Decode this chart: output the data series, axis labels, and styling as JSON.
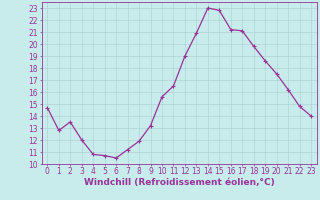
{
  "x": [
    0,
    1,
    2,
    3,
    4,
    5,
    6,
    7,
    8,
    9,
    10,
    11,
    12,
    13,
    14,
    15,
    16,
    17,
    18,
    19,
    20,
    21,
    22,
    23
  ],
  "y": [
    14.7,
    12.8,
    13.5,
    12.0,
    10.8,
    10.7,
    10.5,
    11.2,
    11.9,
    13.2,
    15.6,
    16.5,
    19.0,
    20.9,
    23.0,
    22.8,
    21.2,
    21.1,
    19.8,
    18.6,
    17.5,
    16.2,
    14.8,
    14.0
  ],
  "line_color": "#993399",
  "marker": "+",
  "markersize": 3,
  "linewidth": 0.9,
  "bg_color": "#c8ecec",
  "grid_color": "#aacccc",
  "xlabel": "Windchill (Refroidissement éolien,°C)",
  "xlim": [
    -0.5,
    23.5
  ],
  "ylim": [
    10,
    23.5
  ],
  "yticks": [
    10,
    11,
    12,
    13,
    14,
    15,
    16,
    17,
    18,
    19,
    20,
    21,
    22,
    23
  ],
  "xticks": [
    0,
    1,
    2,
    3,
    4,
    5,
    6,
    7,
    8,
    9,
    10,
    11,
    12,
    13,
    14,
    15,
    16,
    17,
    18,
    19,
    20,
    21,
    22,
    23
  ],
  "tick_color": "#993399",
  "label_color": "#993399",
  "xlabel_fontsize": 6.5,
  "tick_fontsize": 5.5
}
